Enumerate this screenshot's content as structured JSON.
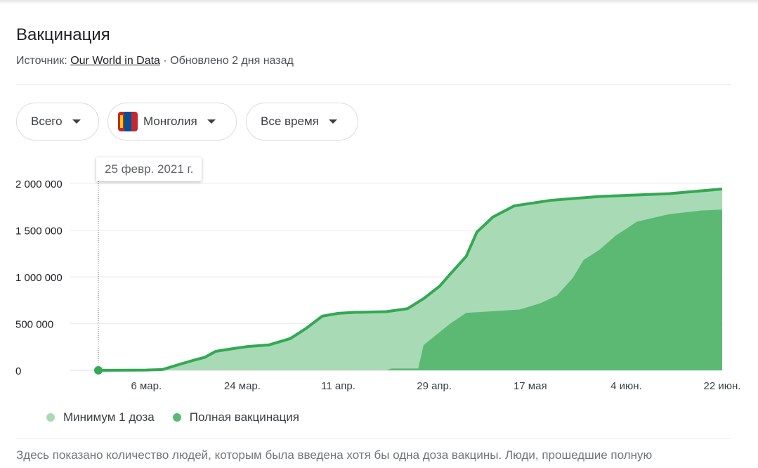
{
  "header": {
    "title": "Вакцинация",
    "source_prefix": "Источник:",
    "source_link": "Our World in Data",
    "updated": " · Обновлено 2 дня назад"
  },
  "filters": [
    {
      "label": "Всего"
    },
    {
      "label": "Монголия",
      "icon": "mongolia-flag-icon"
    },
    {
      "label": "Все время"
    }
  ],
  "tooltip": "25 февр. 2021 г.",
  "note": "Здесь показано количество людей, которым была введена хотя бы одна доза вакцины. Люди, прошедшие полную",
  "colors": {
    "first_dose": "#a8dab5",
    "full": "#5bb974",
    "line": "#34a853"
  },
  "chart_data": {
    "type": "area",
    "xlim": [
      "2021-02-25",
      "2021-06-22"
    ],
    "ylim": [
      0,
      2000000
    ],
    "grid": true,
    "legend_placement": "bottom",
    "yticks": [
      {
        "v": 0,
        "label": "0"
      },
      {
        "v": 500000,
        "label": "500 000"
      },
      {
        "v": 1000000,
        "label": "1 000 000"
      },
      {
        "v": 1500000,
        "label": "1 500 000"
      },
      {
        "v": 2000000,
        "label": "2 000 000"
      }
    ],
    "xticks": [
      {
        "d": "2021-03-06",
        "label": "6 мар."
      },
      {
        "d": "2021-03-24",
        "label": "24 мар."
      },
      {
        "d": "2021-04-11",
        "label": "11 апр."
      },
      {
        "d": "2021-04-29",
        "label": "29 апр."
      },
      {
        "d": "2021-05-17",
        "label": "17 мая"
      },
      {
        "d": "2021-06-04",
        "label": "4 июн."
      },
      {
        "d": "2021-06-22",
        "label": "22 июн."
      }
    ],
    "series": [
      {
        "name": "Минимум 1 доза",
        "points": [
          [
            "2021-02-25",
            0
          ],
          [
            "2021-03-06",
            3000
          ],
          [
            "2021-03-09",
            8000
          ],
          [
            "2021-03-12",
            60000
          ],
          [
            "2021-03-15",
            110000
          ],
          [
            "2021-03-17",
            140000
          ],
          [
            "2021-03-19",
            203000
          ],
          [
            "2021-03-22",
            230000
          ],
          [
            "2021-03-25",
            255000
          ],
          [
            "2021-03-29",
            272000
          ],
          [
            "2021-04-02",
            340000
          ],
          [
            "2021-04-05",
            450000
          ],
          [
            "2021-04-08",
            580000
          ],
          [
            "2021-04-11",
            610000
          ],
          [
            "2021-04-14",
            620000
          ],
          [
            "2021-04-20",
            628000
          ],
          [
            "2021-04-24",
            660000
          ],
          [
            "2021-04-27",
            767000
          ],
          [
            "2021-04-30",
            900000
          ],
          [
            "2021-05-02",
            1030000
          ],
          [
            "2021-05-05",
            1220000
          ],
          [
            "2021-05-07",
            1480000
          ],
          [
            "2021-05-10",
            1640000
          ],
          [
            "2021-05-14",
            1760000
          ],
          [
            "2021-05-21",
            1820000
          ],
          [
            "2021-05-30",
            1860000
          ],
          [
            "2021-06-12",
            1890000
          ],
          [
            "2021-06-22",
            1940000
          ]
        ]
      },
      {
        "name": "Полная вакцинация",
        "points": [
          [
            "2021-02-25",
            0
          ],
          [
            "2021-04-20",
            0
          ],
          [
            "2021-04-21",
            20000
          ],
          [
            "2021-04-26",
            20000
          ],
          [
            "2021-04-27",
            270000
          ],
          [
            "2021-05-02",
            500000
          ],
          [
            "2021-05-05",
            615000
          ],
          [
            "2021-05-15",
            650000
          ],
          [
            "2021-05-19",
            720000
          ],
          [
            "2021-05-22",
            800000
          ],
          [
            "2021-05-25",
            990000
          ],
          [
            "2021-05-27",
            1180000
          ],
          [
            "2021-05-30",
            1290000
          ],
          [
            "2021-06-02",
            1440000
          ],
          [
            "2021-06-06",
            1590000
          ],
          [
            "2021-06-12",
            1670000
          ],
          [
            "2021-06-18",
            1710000
          ],
          [
            "2021-06-22",
            1720000
          ]
        ]
      }
    ]
  }
}
